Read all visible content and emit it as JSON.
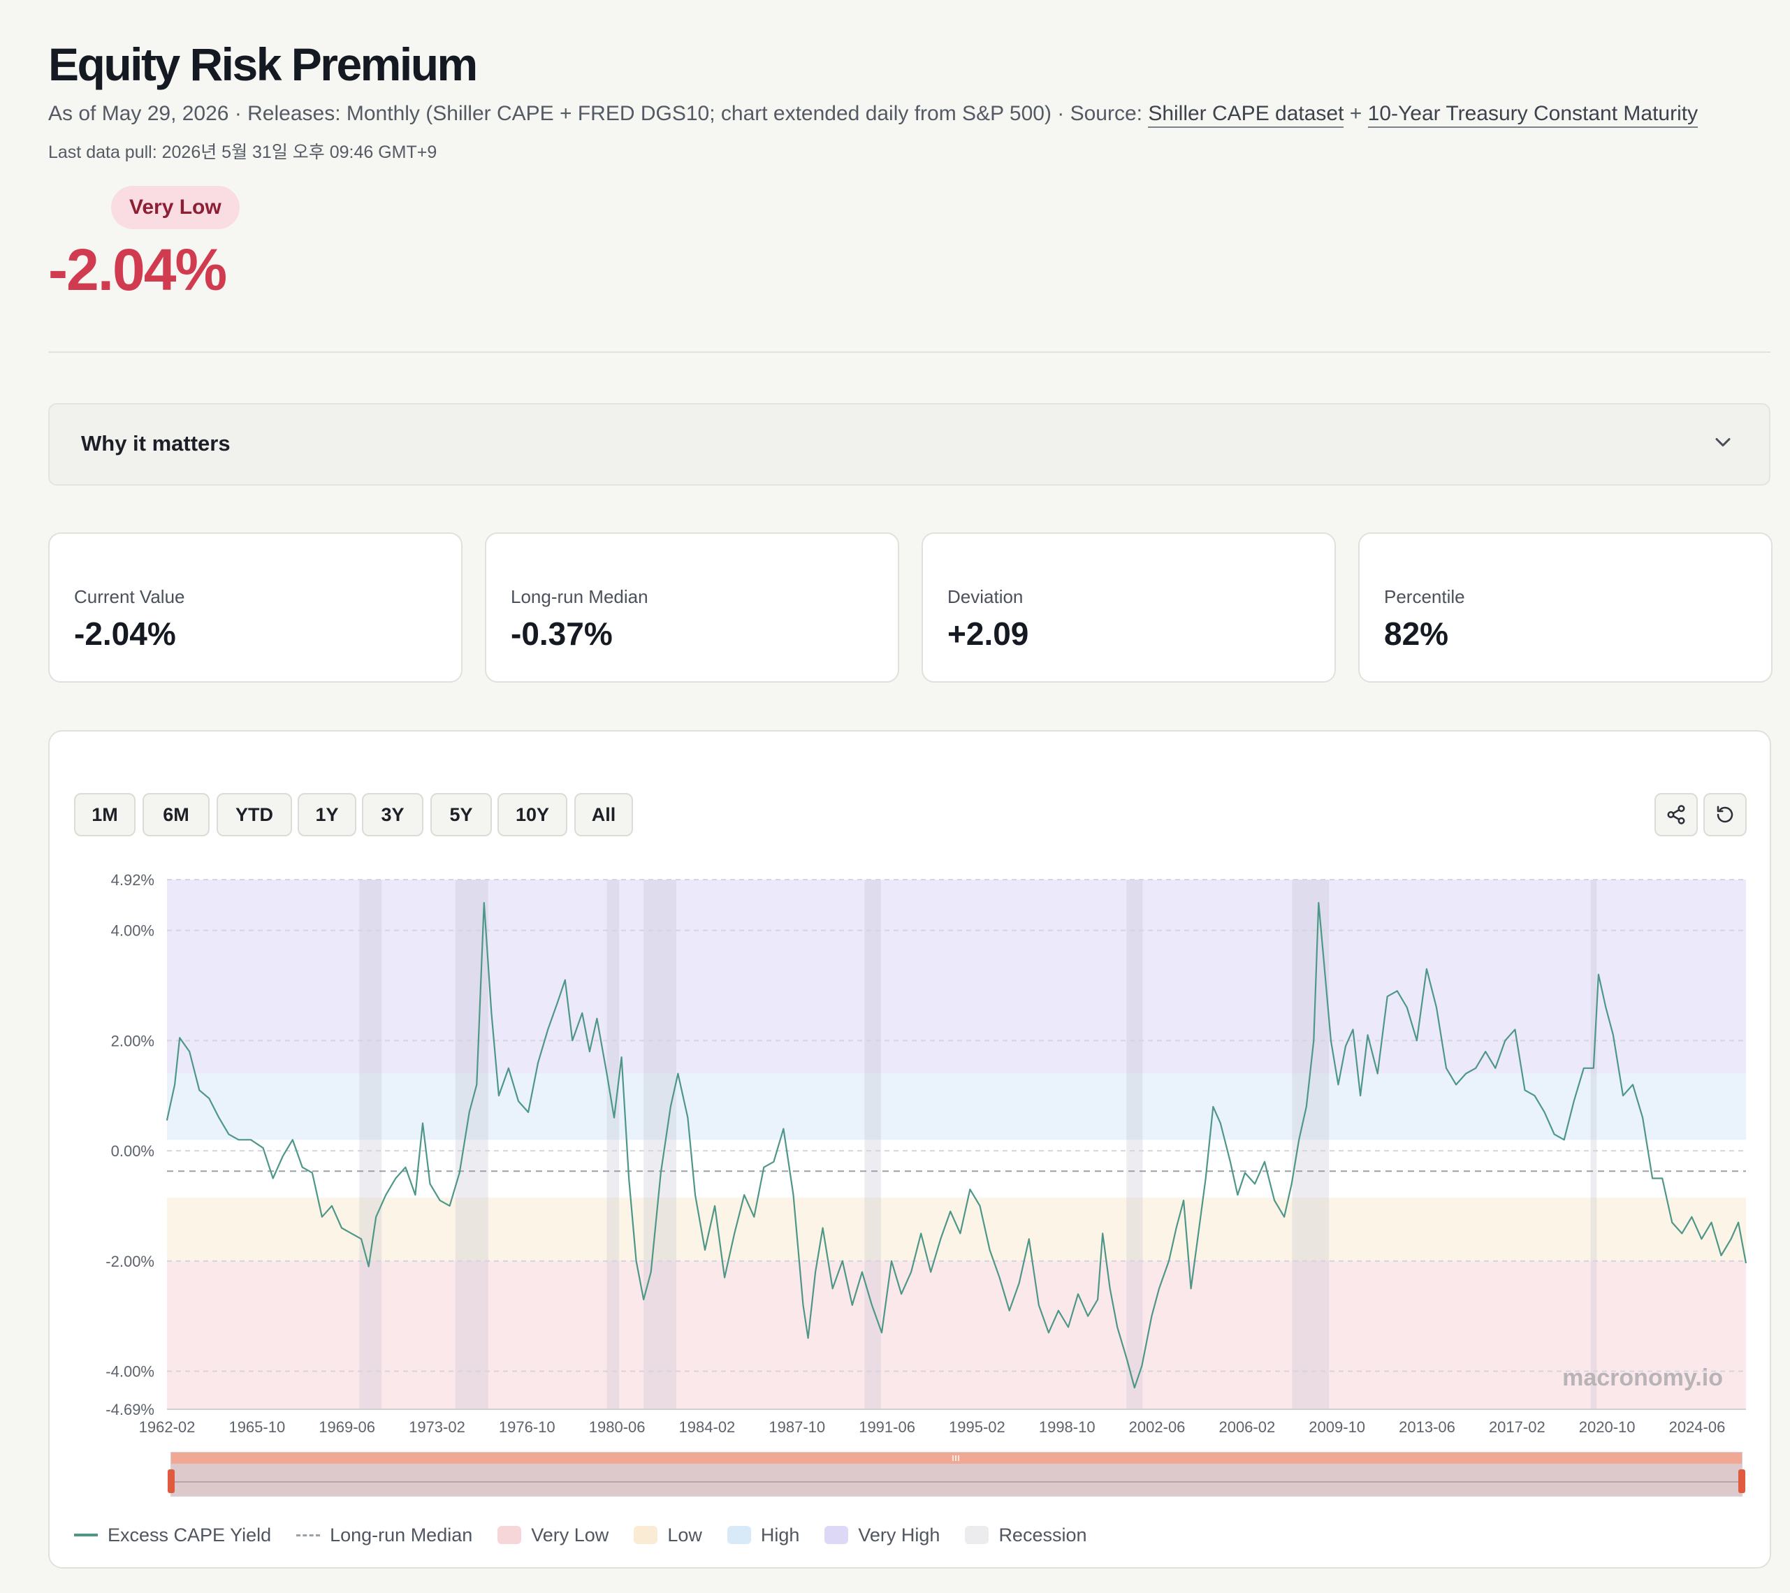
{
  "header": {
    "title": "Equity Risk Premium",
    "meta_prefix": "As of May 29, 2026 · Releases: Monthly (Shiller CAPE + FRED DGS10; chart extended daily from S&P 500) · Source: ",
    "source_link_1": "Shiller CAPE dataset",
    "meta_plus": " + ",
    "source_link_2": "10-Year Treasury Constant Maturity",
    "last_pull": "Last data pull: 2026년 5월 31일 오후 09:46 GMT+9"
  },
  "status": {
    "badge": "Very Low",
    "value": "-2.04%",
    "badge_color": "#f9dde2",
    "value_color": "#d13b4f"
  },
  "accordion": {
    "label": "Why it matters",
    "icon": "chevron-down-icon"
  },
  "stats": [
    {
      "label": "Current Value",
      "value": "-2.04%"
    },
    {
      "label": "Long-run Median",
      "value": "-0.37%"
    },
    {
      "label": "Deviation",
      "value": "+2.09"
    },
    {
      "label": "Percentile",
      "value": "82%"
    }
  ],
  "range_buttons": [
    "1M",
    "6M",
    "YTD",
    "1Y",
    "3Y",
    "5Y",
    "10Y",
    "All"
  ],
  "toolbar_icons": [
    "share-icon",
    "reset-icon"
  ],
  "legend": [
    {
      "label": "Excess CAPE Yield",
      "kind": "line",
      "color": "#4e9788"
    },
    {
      "label": "Long-run Median",
      "kind": "dash",
      "color": "#9aa0a8"
    },
    {
      "label": "Very Low",
      "kind": "swatch",
      "color": "#f7d6da"
    },
    {
      "label": "Low",
      "kind": "swatch",
      "color": "#faebd4"
    },
    {
      "label": "High",
      "kind": "swatch",
      "color": "#d8eaf8"
    },
    {
      "label": "Very High",
      "kind": "swatch",
      "color": "#dcd8f6"
    },
    {
      "label": "Recession",
      "kind": "swatch",
      "color": "#ececee"
    }
  ],
  "watermark": "macronomy.io",
  "chart_data": {
    "type": "line",
    "y_tick_labels": [
      "4.92%",
      "4.00%",
      "2.00%",
      "0.00%",
      "-2.00%",
      "-4.00%",
      "-4.69%"
    ],
    "x_tick_labels": [
      "1962-02",
      "1965-10",
      "1969-06",
      "1973-02",
      "1976-10",
      "1980-06",
      "1984-02",
      "1987-10",
      "1991-06",
      "1995-02",
      "1998-10",
      "2002-06",
      "2006-02",
      "2009-10",
      "2013-06",
      "2017-02",
      "2020-10",
      "2024-06"
    ],
    "ylim": [
      -4.69,
      4.92
    ],
    "x_range": [
      1962.083,
      2026.41
    ],
    "x_ticks": [
      1962.083,
      1965.75,
      1969.417,
      1973.083,
      1976.75,
      1980.417,
      1984.083,
      1987.75,
      1991.417,
      1995.083,
      1998.75,
      2002.417,
      2006.083,
      2009.75,
      2013.417,
      2017.083,
      2020.75,
      2024.417
    ],
    "y_ticks": [
      4.92,
      4.0,
      2.0,
      0.0,
      -2.0,
      -4.0,
      -4.69
    ],
    "median": -0.37,
    "bands": [
      {
        "name": "Very High",
        "from": 1.4,
        "to": 4.92,
        "color": "#dcd8f6"
      },
      {
        "name": "High",
        "from": 0.2,
        "to": 1.4,
        "color": "#d8eaf8"
      },
      {
        "name": "Low",
        "from": -2.0,
        "to": -0.85,
        "color": "#faebd4"
      },
      {
        "name": "Very Low",
        "from": -4.69,
        "to": -2.0,
        "color": "#f7d6da"
      }
    ],
    "recessions": [
      [
        1969.92,
        1970.83
      ],
      [
        1973.83,
        1975.17
      ],
      [
        1980.0,
        1980.5
      ],
      [
        1981.5,
        1982.83
      ],
      [
        1990.5,
        1991.17
      ],
      [
        2001.17,
        2001.83
      ],
      [
        2007.92,
        2009.42
      ],
      [
        2020.08,
        2020.33
      ]
    ],
    "series": [
      {
        "name": "Excess CAPE Yield",
        "color": "#4e9788",
        "points": [
          [
            1962.08,
            0.55
          ],
          [
            1962.4,
            1.2
          ],
          [
            1962.6,
            2.05
          ],
          [
            1963.0,
            1.8
          ],
          [
            1963.4,
            1.1
          ],
          [
            1963.8,
            0.95
          ],
          [
            1964.2,
            0.6
          ],
          [
            1964.6,
            0.3
          ],
          [
            1965.0,
            0.2
          ],
          [
            1965.5,
            0.2
          ],
          [
            1966.0,
            0.05
          ],
          [
            1966.4,
            -0.5
          ],
          [
            1966.8,
            -0.1
          ],
          [
            1967.2,
            0.2
          ],
          [
            1967.6,
            -0.3
          ],
          [
            1968.0,
            -0.4
          ],
          [
            1968.4,
            -1.2
          ],
          [
            1968.8,
            -1.0
          ],
          [
            1969.2,
            -1.4
          ],
          [
            1969.6,
            -1.5
          ],
          [
            1970.0,
            -1.6
          ],
          [
            1970.3,
            -2.1
          ],
          [
            1970.6,
            -1.2
          ],
          [
            1971.0,
            -0.8
          ],
          [
            1971.4,
            -0.5
          ],
          [
            1971.8,
            -0.3
          ],
          [
            1972.2,
            -0.8
          ],
          [
            1972.5,
            0.5
          ],
          [
            1972.8,
            -0.6
          ],
          [
            1973.2,
            -0.9
          ],
          [
            1973.6,
            -1.0
          ],
          [
            1974.0,
            -0.4
          ],
          [
            1974.4,
            0.7
          ],
          [
            1974.7,
            1.2
          ],
          [
            1975.0,
            4.5
          ],
          [
            1975.3,
            2.5
          ],
          [
            1975.6,
            1.0
          ],
          [
            1976.0,
            1.5
          ],
          [
            1976.4,
            0.9
          ],
          [
            1976.8,
            0.7
          ],
          [
            1977.2,
            1.6
          ],
          [
            1977.6,
            2.2
          ],
          [
            1978.0,
            2.7
          ],
          [
            1978.3,
            3.1
          ],
          [
            1978.6,
            2.0
          ],
          [
            1979.0,
            2.5
          ],
          [
            1979.3,
            1.8
          ],
          [
            1979.6,
            2.4
          ],
          [
            1980.0,
            1.4
          ],
          [
            1980.3,
            0.6
          ],
          [
            1980.6,
            1.7
          ],
          [
            1980.9,
            -0.5
          ],
          [
            1981.2,
            -2.0
          ],
          [
            1981.5,
            -2.7
          ],
          [
            1981.8,
            -2.2
          ],
          [
            1982.2,
            -0.4
          ],
          [
            1982.6,
            0.8
          ],
          [
            1982.9,
            1.4
          ],
          [
            1983.3,
            0.6
          ],
          [
            1983.6,
            -0.8
          ],
          [
            1984.0,
            -1.8
          ],
          [
            1984.4,
            -1.0
          ],
          [
            1984.8,
            -2.3
          ],
          [
            1985.2,
            -1.5
          ],
          [
            1985.6,
            -0.8
          ],
          [
            1986.0,
            -1.2
          ],
          [
            1986.4,
            -0.3
          ],
          [
            1986.8,
            -0.2
          ],
          [
            1987.2,
            0.4
          ],
          [
            1987.6,
            -0.8
          ],
          [
            1988.0,
            -2.8
          ],
          [
            1988.2,
            -3.4
          ],
          [
            1988.5,
            -2.2
          ],
          [
            1988.8,
            -1.4
          ],
          [
            1989.2,
            -2.5
          ],
          [
            1989.6,
            -2.0
          ],
          [
            1990.0,
            -2.8
          ],
          [
            1990.4,
            -2.2
          ],
          [
            1990.8,
            -2.8
          ],
          [
            1991.2,
            -3.3
          ],
          [
            1991.6,
            -2.0
          ],
          [
            1992.0,
            -2.6
          ],
          [
            1992.4,
            -2.2
          ],
          [
            1992.8,
            -1.5
          ],
          [
            1993.2,
            -2.2
          ],
          [
            1993.6,
            -1.6
          ],
          [
            1994.0,
            -1.1
          ],
          [
            1994.4,
            -1.5
          ],
          [
            1994.8,
            -0.7
          ],
          [
            1995.2,
            -1.0
          ],
          [
            1995.6,
            -1.8
          ],
          [
            1996.0,
            -2.3
          ],
          [
            1996.4,
            -2.9
          ],
          [
            1996.8,
            -2.4
          ],
          [
            1997.2,
            -1.6
          ],
          [
            1997.6,
            -2.8
          ],
          [
            1998.0,
            -3.3
          ],
          [
            1998.4,
            -2.9
          ],
          [
            1998.8,
            -3.2
          ],
          [
            1999.2,
            -2.6
          ],
          [
            1999.6,
            -3.0
          ],
          [
            2000.0,
            -2.7
          ],
          [
            2000.2,
            -1.5
          ],
          [
            2000.5,
            -2.5
          ],
          [
            2000.8,
            -3.2
          ],
          [
            2001.2,
            -3.8
          ],
          [
            2001.5,
            -4.3
          ],
          [
            2001.8,
            -3.9
          ],
          [
            2002.2,
            -3.0
          ],
          [
            2002.5,
            -2.5
          ],
          [
            2002.9,
            -2.0
          ],
          [
            2003.2,
            -1.4
          ],
          [
            2003.5,
            -0.9
          ],
          [
            2003.8,
            -2.5
          ],
          [
            2004.1,
            -1.5
          ],
          [
            2004.4,
            -0.5
          ],
          [
            2004.7,
            0.8
          ],
          [
            2005.0,
            0.5
          ],
          [
            2005.4,
            -0.2
          ],
          [
            2005.7,
            -0.8
          ],
          [
            2006.0,
            -0.4
          ],
          [
            2006.4,
            -0.6
          ],
          [
            2006.8,
            -0.2
          ],
          [
            2007.2,
            -0.9
          ],
          [
            2007.6,
            -1.2
          ],
          [
            2007.9,
            -0.6
          ],
          [
            2008.2,
            0.2
          ],
          [
            2008.5,
            0.8
          ],
          [
            2008.8,
            2.0
          ],
          [
            2009.0,
            4.5
          ],
          [
            2009.2,
            3.5
          ],
          [
            2009.5,
            2.0
          ],
          [
            2009.8,
            1.2
          ],
          [
            2010.1,
            1.9
          ],
          [
            2010.4,
            2.2
          ],
          [
            2010.7,
            1.0
          ],
          [
            2011.0,
            2.1
          ],
          [
            2011.4,
            1.4
          ],
          [
            2011.8,
            2.8
          ],
          [
            2012.2,
            2.9
          ],
          [
            2012.6,
            2.6
          ],
          [
            2013.0,
            2.0
          ],
          [
            2013.4,
            3.3
          ],
          [
            2013.8,
            2.6
          ],
          [
            2014.2,
            1.5
          ],
          [
            2014.6,
            1.2
          ],
          [
            2015.0,
            1.4
          ],
          [
            2015.4,
            1.5
          ],
          [
            2015.8,
            1.8
          ],
          [
            2016.2,
            1.5
          ],
          [
            2016.6,
            2.0
          ],
          [
            2017.0,
            2.2
          ],
          [
            2017.4,
            1.1
          ],
          [
            2017.8,
            1.0
          ],
          [
            2018.2,
            0.7
          ],
          [
            2018.6,
            0.3
          ],
          [
            2019.0,
            0.2
          ],
          [
            2019.4,
            0.9
          ],
          [
            2019.8,
            1.5
          ],
          [
            2020.2,
            1.5
          ],
          [
            2020.4,
            3.2
          ],
          [
            2020.7,
            2.6
          ],
          [
            2021.0,
            2.1
          ],
          [
            2021.4,
            1.0
          ],
          [
            2021.8,
            1.2
          ],
          [
            2022.2,
            0.6
          ],
          [
            2022.6,
            -0.5
          ],
          [
            2023.0,
            -0.5
          ],
          [
            2023.4,
            -1.3
          ],
          [
            2023.8,
            -1.5
          ],
          [
            2024.2,
            -1.2
          ],
          [
            2024.6,
            -1.6
          ],
          [
            2025.0,
            -1.3
          ],
          [
            2025.4,
            -1.9
          ],
          [
            2025.8,
            -1.6
          ],
          [
            2026.1,
            -1.3
          ],
          [
            2026.41,
            -2.04
          ]
        ]
      }
    ]
  }
}
